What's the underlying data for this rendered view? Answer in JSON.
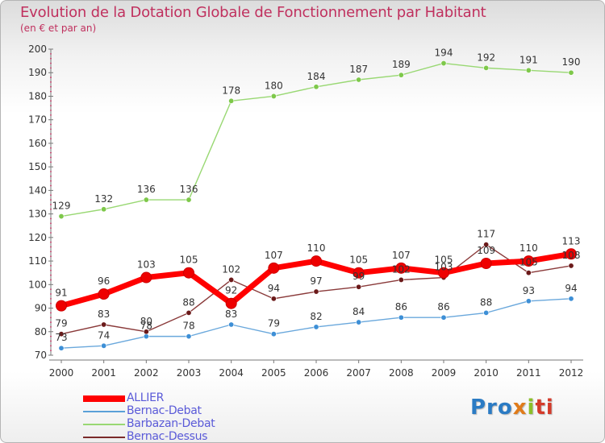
{
  "title": "Evolution de la Dotation Globale de Fonctionnement par Habitant",
  "subtitle": "(en € et par an)",
  "logo": {
    "p1": "Pro",
    "p2": "x",
    "p3": "i",
    "p4": "ti"
  },
  "legend": [
    {
      "label": "ALLIER",
      "color": "#ff0000"
    },
    {
      "label": "Bernac-Debat",
      "color": "#5aa0d8"
    },
    {
      "label": "Barbazan-Debat",
      "color": "#99d873"
    },
    {
      "label": "Bernac-Dessus",
      "color": "#7a2a2a"
    }
  ],
  "chart_data": {
    "type": "line",
    "title": "Evolution de la Dotation Globale de Fonctionnement par Habitant",
    "ylabel": "(en € et par an)",
    "xlabel": "",
    "categories": [
      "2000",
      "2001",
      "2002",
      "2003",
      "2004",
      "2005",
      "2006",
      "2007",
      "2008",
      "2009",
      "2010",
      "2011",
      "2012"
    ],
    "ylim": [
      70,
      200
    ],
    "yticks": [
      70,
      80,
      90,
      100,
      110,
      120,
      130,
      140,
      150,
      160,
      170,
      180,
      190,
      200
    ],
    "grid": false,
    "series": [
      {
        "name": "Barbazan-Debat",
        "color": "#99d873",
        "marker": "#7ec84a",
        "values": [
          129,
          132,
          136,
          136,
          178,
          180,
          184,
          187,
          189,
          194,
          192,
          191,
          190
        ]
      },
      {
        "name": "Bernac-Debat",
        "color": "#6aa8dc",
        "marker": "#3d8fd6",
        "values": [
          73,
          74,
          78,
          78,
          83,
          79,
          82,
          84,
          86,
          86,
          88,
          93,
          94
        ]
      },
      {
        "name": "Bernac-Dessus",
        "color": "#8a3a3a",
        "marker": "#6b1a1a",
        "values": [
          79,
          83,
          80,
          88,
          102,
          94,
          97,
          99,
          102,
          103,
          117,
          105,
          108
        ]
      },
      {
        "name": "ALLIER",
        "color": "#ff0000",
        "marker": "#ee0000",
        "values": [
          91,
          96,
          103,
          105,
          92,
          107,
          110,
          105,
          107,
          105,
          109,
          110,
          113
        ]
      }
    ]
  }
}
